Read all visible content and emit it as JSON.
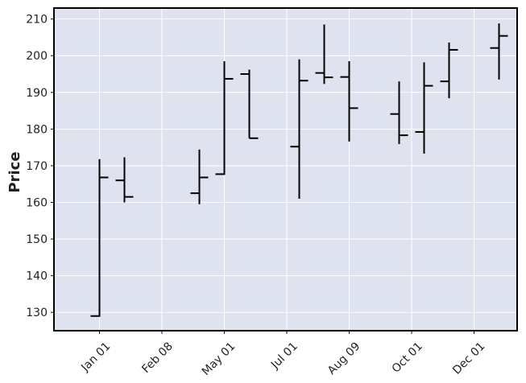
{
  "chart_data": {
    "type": "ohlc",
    "title": "",
    "xlabel": "",
    "ylabel": "Price",
    "ylim": [
      125,
      213
    ],
    "yticks": [
      130,
      140,
      150,
      160,
      170,
      180,
      190,
      200,
      210
    ],
    "xtick_labels": [
      "Jan 01",
      "Feb 08",
      "May 01",
      "Jul 01",
      "Aug 09",
      "Oct 01",
      "Dec 01"
    ],
    "grid": true,
    "colors": {
      "plot_bg": "#dfe3ef",
      "grid": "#ffffff",
      "bars": "#000000",
      "frame": "#000000"
    },
    "bars": [
      {
        "slot": 0,
        "open": 129.0,
        "high": 171.8,
        "low": 128.8,
        "close": 166.8
      },
      {
        "slot": 1,
        "open": 166.0,
        "high": 172.3,
        "low": 160.0,
        "close": 161.5
      },
      {
        "slot": 4,
        "open": 162.5,
        "high": 174.4,
        "low": 159.5,
        "close": 166.8
      },
      {
        "slot": 5,
        "open": 167.7,
        "high": 198.5,
        "low": 167.5,
        "close": 193.7
      },
      {
        "slot": 6,
        "open": 195.0,
        "high": 196.2,
        "low": 177.5,
        "close": 177.5
      },
      {
        "slot": 8,
        "open": 175.2,
        "high": 199.0,
        "low": 161.0,
        "close": 193.2
      },
      {
        "slot": 9,
        "open": 195.3,
        "high": 208.5,
        "low": 192.3,
        "close": 194.1
      },
      {
        "slot": 10,
        "open": 194.2,
        "high": 198.5,
        "low": 176.6,
        "close": 185.7
      },
      {
        "slot": 12,
        "open": 184.1,
        "high": 193.0,
        "low": 175.9,
        "close": 178.3
      },
      {
        "slot": 13,
        "open": 179.2,
        "high": 198.2,
        "low": 173.3,
        "close": 191.8
      },
      {
        "slot": 14,
        "open": 193.0,
        "high": 203.6,
        "low": 188.4,
        "close": 201.6
      },
      {
        "slot": 16,
        "open": 202.1,
        "high": 208.8,
        "low": 193.5,
        "close": 205.4
      }
    ]
  }
}
